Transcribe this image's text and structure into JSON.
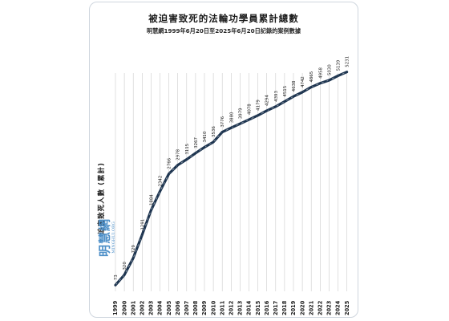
{
  "title": "被迫害致死的法輪功學員累計總數",
  "subtitle": "明慧網1999年6月20日至2025年6月20日記錄的案例數據",
  "logo": {
    "name": "明慧網",
    "sub": "MINGHUI.ORG"
  },
  "colors": {
    "line": "#1e3550",
    "dash": "#ffffff",
    "grid": "#cccccc",
    "logo": "#4d8fc8"
  },
  "chart_data": {
    "type": "line",
    "title": "被迫害致死的法輪功學員累計總數",
    "subtitle": "明慧網1999年6月20日至2025年6月20日記錄的案例數據",
    "ylabel": "迫害致死人數 (累計)",
    "xlabel": "",
    "grid": "vertical lines",
    "categories": [
      "1999",
      "2000",
      "2001",
      "2002",
      "2003",
      "2004",
      "2005",
      "2006",
      "2007",
      "2008",
      "2009",
      "2010",
      "2011",
      "2012",
      "2013",
      "2014",
      "2015",
      "2016",
      "2017",
      "2018",
      "2019",
      "2020",
      "2021",
      "2022",
      "2023",
      "2024",
      "2025"
    ],
    "values": [
      73,
      320,
      729,
      1291,
      1884,
      2342,
      2766,
      2978,
      3115,
      3267,
      3410,
      3536,
      3776,
      3880,
      3979,
      4078,
      4179,
      4294,
      4393,
      4515,
      4638,
      4742,
      4865,
      4958,
      5030,
      5139,
      5231
    ],
    "ylim": [
      0,
      5400
    ]
  }
}
